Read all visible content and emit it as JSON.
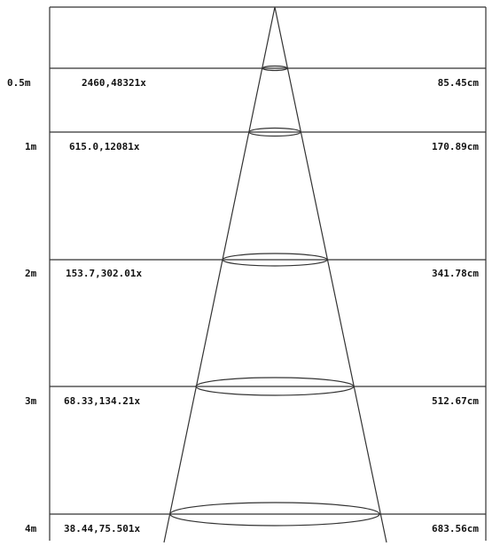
{
  "diagram": {
    "rows": [
      {
        "distance": "0.5m",
        "illuminance": "2460,48321x",
        "diameter": "85.45cm"
      },
      {
        "distance": "1m",
        "illuminance": "615.0,12081x",
        "diameter": "170.89cm"
      },
      {
        "distance": "2m",
        "illuminance": "153.7,302.01x",
        "diameter": "341.78cm"
      },
      {
        "distance": "3m",
        "illuminance": "68.33,134.21x",
        "diameter": "512.67cm"
      },
      {
        "distance": "4m",
        "illuminance": "38.44,75.501x",
        "diameter": "683.56cm"
      }
    ]
  }
}
